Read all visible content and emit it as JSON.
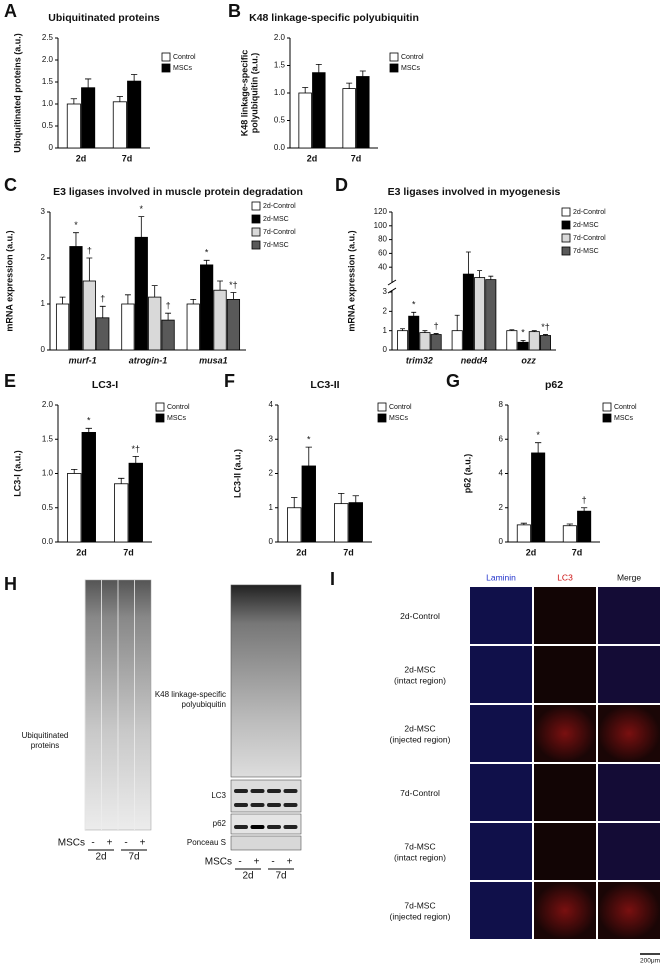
{
  "chart_data": [
    {
      "type": "bar",
      "label": "A",
      "title": "Ubiquitinated proteins",
      "ylabel": [
        "Ubiquitinated proteins (a.u.)"
      ],
      "categories": [
        "2d",
        "7d"
      ],
      "series": [
        {
          "name": "Control",
          "color": "#ffffff",
          "values": [
            1.0,
            1.05
          ],
          "errors": [
            0.12,
            0.12
          ]
        },
        {
          "name": "MSCs",
          "color": "#000000",
          "values": [
            1.37,
            1.52
          ],
          "errors": [
            0.2,
            0.15
          ]
        }
      ],
      "ylim": [
        0,
        2.5
      ],
      "yticks": [
        0,
        0.5,
        {
          "value": 1,
          "label": "1.0"
        },
        1.5,
        {
          "value": 2,
          "label": "2.0"
        },
        2.5
      ],
      "grid": false
    },
    {
      "type": "bar",
      "label": "B",
      "title": "K48 linkage-specific polyubiquitin",
      "ylabel": [
        "K48 linkage-specific",
        "polyubiquitin (a.u.)"
      ],
      "categories": [
        "2d",
        "7d"
      ],
      "series": [
        {
          "name": "Control",
          "color": "#ffffff",
          "values": [
            1.0,
            1.08
          ],
          "errors": [
            0.1,
            0.1
          ]
        },
        {
          "name": "MSCs",
          "color": "#000000",
          "values": [
            1.37,
            1.3
          ],
          "errors": [
            0.15,
            0.1
          ]
        }
      ],
      "ylim": [
        0,
        2
      ],
      "yticks": [
        {
          "value": 0,
          "label": "0.0"
        },
        0.5,
        {
          "value": 1,
          "label": "1.0"
        },
        1.5,
        {
          "value": 2,
          "label": "2.0"
        }
      ],
      "grid": false
    },
    {
      "type": "bar",
      "label": "C",
      "title": "E3 ligases involved in muscle protein degradation",
      "ylabel": [
        "mRNA expression (a.u.)"
      ],
      "categories": [
        "murf-1",
        "atrogin-1",
        "musa1"
      ],
      "italic_categories": true,
      "series": [
        {
          "name": "2d-Control",
          "color": "#ffffff",
          "values": [
            1.0,
            1.0,
            1.0
          ],
          "errors": [
            0.15,
            0.2,
            0.1
          ],
          "annotations": [
            null,
            null,
            null
          ]
        },
        {
          "name": "2d-MSC",
          "color": "#000000",
          "values": [
            2.25,
            2.45,
            1.85
          ],
          "errors": [
            0.3,
            0.45,
            0.1
          ],
          "annotations": [
            "*",
            "*",
            "*"
          ]
        },
        {
          "name": "7d-Control",
          "color": "#d9d9d9",
          "values": [
            1.5,
            1.15,
            1.3
          ],
          "errors": [
            0.5,
            0.25,
            0.2
          ],
          "annotations": [
            "†",
            null,
            null
          ]
        },
        {
          "name": "7d-MSC",
          "color": "#595959",
          "values": [
            0.7,
            0.65,
            1.1
          ],
          "errors": [
            0.25,
            0.15,
            0.15
          ],
          "annotations": [
            "†",
            "†",
            "*†"
          ]
        }
      ],
      "ylim": [
        0,
        3
      ],
      "yticks": [
        0,
        1,
        2,
        3
      ],
      "grid": false
    },
    {
      "type": "bar",
      "label": "D",
      "title": "E3 ligases involved in myogenesis",
      "ylabel": [
        "mRNA expression (a.u.)"
      ],
      "categories": [
        "trim32",
        "nedd4",
        "ozz"
      ],
      "italic_categories": true,
      "series": [
        {
          "name": "2d-Control",
          "color": "#ffffff",
          "values": [
            1.0,
            1.0,
            1.0
          ],
          "errors": [
            0.1,
            0.8,
            0.05
          ],
          "annotations": [
            null,
            null,
            null
          ]
        },
        {
          "name": "2d-MSC",
          "color": "#000000",
          "values": [
            1.75,
            30,
            0.4
          ],
          "errors": [
            0.2,
            32,
            0.1
          ],
          "annotations": [
            "*",
            null,
            "*"
          ]
        },
        {
          "name": "7d-Control",
          "color": "#d9d9d9",
          "values": [
            0.9,
            25,
            0.95
          ],
          "errors": [
            0.1,
            10,
            0.05
          ],
          "annotations": [
            null,
            null,
            null
          ]
        },
        {
          "name": "7d-MSC",
          "color": "#595959",
          "values": [
            0.8,
            22,
            0.75
          ],
          "errors": [
            0.05,
            5,
            0.05
          ],
          "annotations": [
            "†",
            null,
            "*†"
          ]
        }
      ],
      "ylim": [
        0,
        120
      ],
      "axis_break": [
        3,
        20
      ],
      "yticks": [
        0,
        1,
        2,
        3,
        40,
        60,
        80,
        100,
        120
      ],
      "grid": false
    },
    {
      "type": "bar",
      "label": "E",
      "title": "LC3-I",
      "ylabel": [
        "LC3-I (a.u.)"
      ],
      "categories": [
        "2d",
        "7d"
      ],
      "series": [
        {
          "name": "Control",
          "color": "#ffffff",
          "values": [
            1.0,
            0.85
          ],
          "errors": [
            0.06,
            0.08
          ],
          "annotations": [
            null,
            null
          ]
        },
        {
          "name": "MSCs",
          "color": "#000000",
          "values": [
            1.6,
            1.15
          ],
          "errors": [
            0.06,
            0.1
          ],
          "annotations": [
            "*",
            "*†"
          ]
        }
      ],
      "ylim": [
        0,
        2
      ],
      "yticks": [
        {
          "value": 0,
          "label": "0.0"
        },
        0.5,
        {
          "value": 1,
          "label": "1.0"
        },
        1.5,
        {
          "value": 2,
          "label": "2.0"
        }
      ],
      "grid": false
    },
    {
      "type": "bar",
      "label": "F",
      "title": "LC3-II",
      "ylabel": [
        "LC3-II (a.u.)"
      ],
      "categories": [
        "2d",
        "7d"
      ],
      "series": [
        {
          "name": "Control",
          "color": "#ffffff",
          "values": [
            1.0,
            1.12
          ],
          "errors": [
            0.3,
            0.3
          ],
          "annotations": [
            null,
            null
          ]
        },
        {
          "name": "MSCs",
          "color": "#000000",
          "values": [
            2.22,
            1.15
          ],
          "errors": [
            0.55,
            0.2
          ],
          "annotations": [
            "*",
            null
          ]
        }
      ],
      "ylim": [
        0,
        4
      ],
      "yticks": [
        0,
        1,
        2,
        3,
        4
      ],
      "grid": false
    },
    {
      "type": "bar",
      "label": "G",
      "title": "p62",
      "ylabel": [
        "p62 (a.u.)"
      ],
      "categories": [
        "2d",
        "7d"
      ],
      "series": [
        {
          "name": "Control",
          "color": "#ffffff",
          "values": [
            1.0,
            0.95
          ],
          "errors": [
            0.1,
            0.1
          ],
          "annotations": [
            null,
            null
          ]
        },
        {
          "name": "MSCs",
          "color": "#000000",
          "values": [
            5.2,
            1.8
          ],
          "errors": [
            0.6,
            0.2
          ],
          "annotations": [
            "*",
            "†"
          ]
        }
      ],
      "ylim": [
        0,
        8
      ],
      "yticks": [
        0,
        2,
        4,
        6,
        8
      ],
      "grid": false
    }
  ],
  "panel_h": {
    "label": "H",
    "left_label": [
      "Ubiquitinated",
      "proteins"
    ],
    "right_labels": [
      [
        "K48 linkage-specific",
        "polyubiquitin"
      ],
      [
        "LC3"
      ],
      [
        "p62"
      ],
      [
        "Ponceau S"
      ]
    ],
    "msc_label": "MSCs",
    "lanes": [
      "-",
      "+",
      "-",
      "+"
    ],
    "days": [
      "2d",
      "7d"
    ]
  },
  "panel_i": {
    "label": "I",
    "columns": [
      "Laminin",
      "LC3",
      "Merge"
    ],
    "rows": [
      [
        "2d-Control"
      ],
      [
        "2d-MSC",
        "(intact region)"
      ],
      [
        "2d-MSC",
        "(injected region)"
      ],
      [
        "7d-Control"
      ],
      [
        "7d-MSC",
        "(intact region)"
      ],
      [
        "7d-MSC",
        "(injected region)"
      ]
    ],
    "scale": "200μm"
  }
}
